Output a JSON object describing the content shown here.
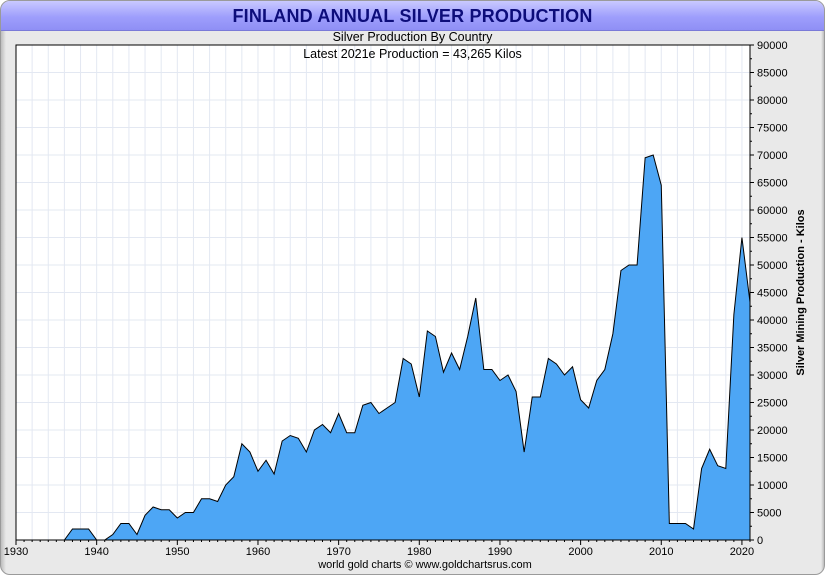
{
  "chart_data": {
    "type": "area",
    "title": "FINLAND ANNUAL SILVER PRODUCTION",
    "subtitle": "Silver Production By Country",
    "annotation": "Latest 2021e Production = 43,265 Kilos",
    "ylabel": "Silver Mining Production - Kilos",
    "xlabel": "",
    "footer": "world gold charts © www.goldchartsrus.com",
    "xlim": [
      1930,
      2021
    ],
    "ylim": [
      0,
      90000
    ],
    "x_ticks": [
      1930,
      1940,
      1950,
      1960,
      1970,
      1980,
      1990,
      2000,
      2010,
      2020
    ],
    "y_ticks": [
      0,
      5000,
      10000,
      15000,
      20000,
      25000,
      30000,
      35000,
      40000,
      45000,
      50000,
      55000,
      60000,
      65000,
      70000,
      75000,
      80000,
      85000,
      90000
    ],
    "fill_color": "#4da6f5",
    "line_color": "#000000",
    "grid": true,
    "series": [
      {
        "name": "Finland",
        "x": [
          1930,
          1931,
          1932,
          1933,
          1934,
          1935,
          1936,
          1937,
          1938,
          1939,
          1940,
          1941,
          1942,
          1943,
          1944,
          1945,
          1946,
          1947,
          1948,
          1949,
          1950,
          1951,
          1952,
          1953,
          1954,
          1955,
          1956,
          1957,
          1958,
          1959,
          1960,
          1961,
          1962,
          1963,
          1964,
          1965,
          1966,
          1967,
          1968,
          1969,
          1970,
          1971,
          1972,
          1973,
          1974,
          1975,
          1976,
          1977,
          1978,
          1979,
          1980,
          1981,
          1982,
          1983,
          1984,
          1985,
          1986,
          1987,
          1988,
          1989,
          1990,
          1991,
          1992,
          1993,
          1994,
          1995,
          1996,
          1997,
          1998,
          1999,
          2000,
          2001,
          2002,
          2003,
          2004,
          2005,
          2006,
          2007,
          2008,
          2009,
          2010,
          2011,
          2012,
          2013,
          2014,
          2015,
          2016,
          2017,
          2018,
          2019,
          2020,
          2021
        ],
        "values": [
          0,
          0,
          0,
          0,
          0,
          0,
          0,
          2000,
          2000,
          2000,
          0,
          0,
          1000,
          3000,
          3000,
          1000,
          4500,
          6000,
          5500,
          5500,
          4000,
          5000,
          5000,
          7500,
          7500,
          7000,
          10000,
          11500,
          17500,
          16000,
          12500,
          14500,
          12000,
          18000,
          19000,
          18500,
          16000,
          20000,
          21000,
          19500,
          23000,
          19500,
          19500,
          24500,
          25000,
          23000,
          24000,
          25000,
          33000,
          32000,
          26000,
          38000,
          37000,
          30500,
          34000,
          31000,
          37000,
          44000,
          31000,
          31000,
          29000,
          30000,
          27000,
          16000,
          26000,
          26000,
          33000,
          32000,
          30000,
          31500,
          25500,
          24000,
          29000,
          31000,
          37500,
          49000,
          50000,
          50000,
          69500,
          70000,
          64500,
          3000,
          3000,
          3000,
          2000,
          13000,
          16500,
          13500,
          13000,
          41000,
          55000,
          43265
        ]
      }
    ]
  }
}
